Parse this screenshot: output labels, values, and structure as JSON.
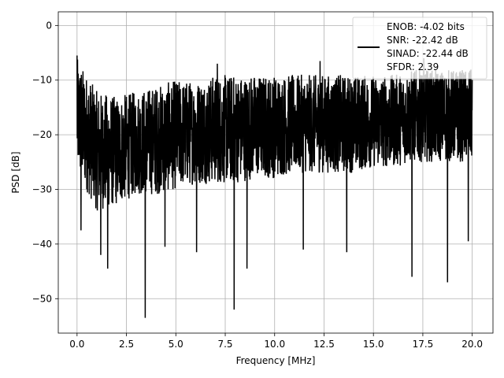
{
  "chart_data": {
    "type": "line",
    "xlabel": "Frequency [MHz]",
    "ylabel": "PSD [dB]",
    "xlim": [
      -0.95,
      21.05
    ],
    "ylim": [
      -56.3,
      2.5
    ],
    "xticks": [
      0.0,
      2.5,
      5.0,
      7.5,
      10.0,
      12.5,
      15.0,
      17.5,
      20.0
    ],
    "xtick_labels": [
      "0.0",
      "2.5",
      "5.0",
      "7.5",
      "10.0",
      "12.5",
      "15.0",
      "17.5",
      "20.0"
    ],
    "yticks": [
      0,
      -10,
      -20,
      -30,
      -40,
      -50
    ],
    "ytick_labels": [
      "0",
      "−10",
      "−20",
      "−30",
      "−40",
      "−50"
    ],
    "grid": true,
    "legend_position": "top-right",
    "legend_lines": [
      "ENOB: -4.02 bits",
      "SNR: -22.42 dB",
      "SINAD: -22.44 dB",
      "SFDR: 2.39"
    ],
    "series": [
      {
        "color": "#000000",
        "x_range": [
          0.0,
          20.0
        ],
        "trace_upper_envelope_db": [
          -6,
          -12,
          -13,
          -12,
          -11,
          -10,
          -10,
          -9,
          -9,
          -9,
          -9,
          -9,
          -9,
          -9,
          -9,
          -9,
          -9,
          -8,
          -8,
          -8,
          -8
        ],
        "trace_lower_envelope_db": [
          -27,
          -34,
          -33,
          -31,
          -31,
          -30,
          -29,
          -29,
          -29,
          -28,
          -28,
          -27,
          -27,
          -27,
          -27,
          -26,
          -26,
          -25,
          -25,
          -25,
          -25
        ],
        "spikes": [
          {
            "x": 0.0,
            "y": -5.5
          },
          {
            "x": 0.2,
            "y": -37.5
          },
          {
            "x": 1.2,
            "y": -42.0
          },
          {
            "x": 1.55,
            "y": -44.5
          },
          {
            "x": 3.45,
            "y": -53.5
          },
          {
            "x": 4.45,
            "y": -40.5
          },
          {
            "x": 6.05,
            "y": -41.5
          },
          {
            "x": 7.95,
            "y": -52.0
          },
          {
            "x": 8.6,
            "y": -44.5
          },
          {
            "x": 11.45,
            "y": -41.0
          },
          {
            "x": 13.65,
            "y": -41.5
          },
          {
            "x": 16.95,
            "y": -46.0
          },
          {
            "x": 18.75,
            "y": -47.0
          },
          {
            "x": 19.8,
            "y": -39.5
          },
          {
            "x": 7.1,
            "y": -7.0
          },
          {
            "x": 12.3,
            "y": -6.5
          },
          {
            "x": 17.55,
            "y": -6.0
          }
        ]
      }
    ]
  }
}
